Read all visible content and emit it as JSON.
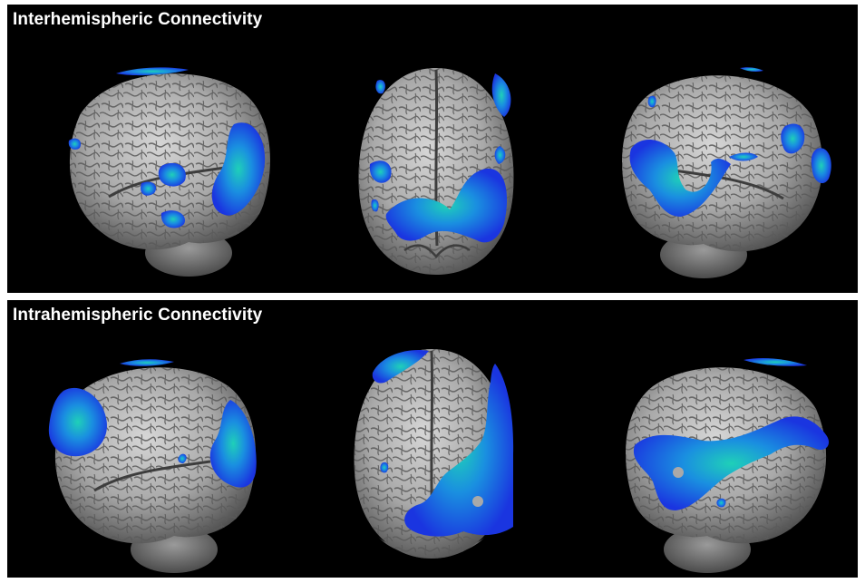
{
  "panels": [
    {
      "title": "Interhemispheric Connectivity",
      "views": [
        "left-lateral",
        "posterior",
        "right-lateral"
      ]
    },
    {
      "title": "Intrahemispheric Connectivity",
      "views": [
        "left-lateral",
        "posterior",
        "right-lateral"
      ]
    }
  ],
  "colors": {
    "panel_background": "#000000",
    "separator": "#ffffff",
    "title_text": "#ffffff",
    "brain_surface": "#a9a9a9",
    "brain_sulci": "#555555",
    "activation_outer": "#1a35e0",
    "activation_inner": "#1fd0b8"
  }
}
